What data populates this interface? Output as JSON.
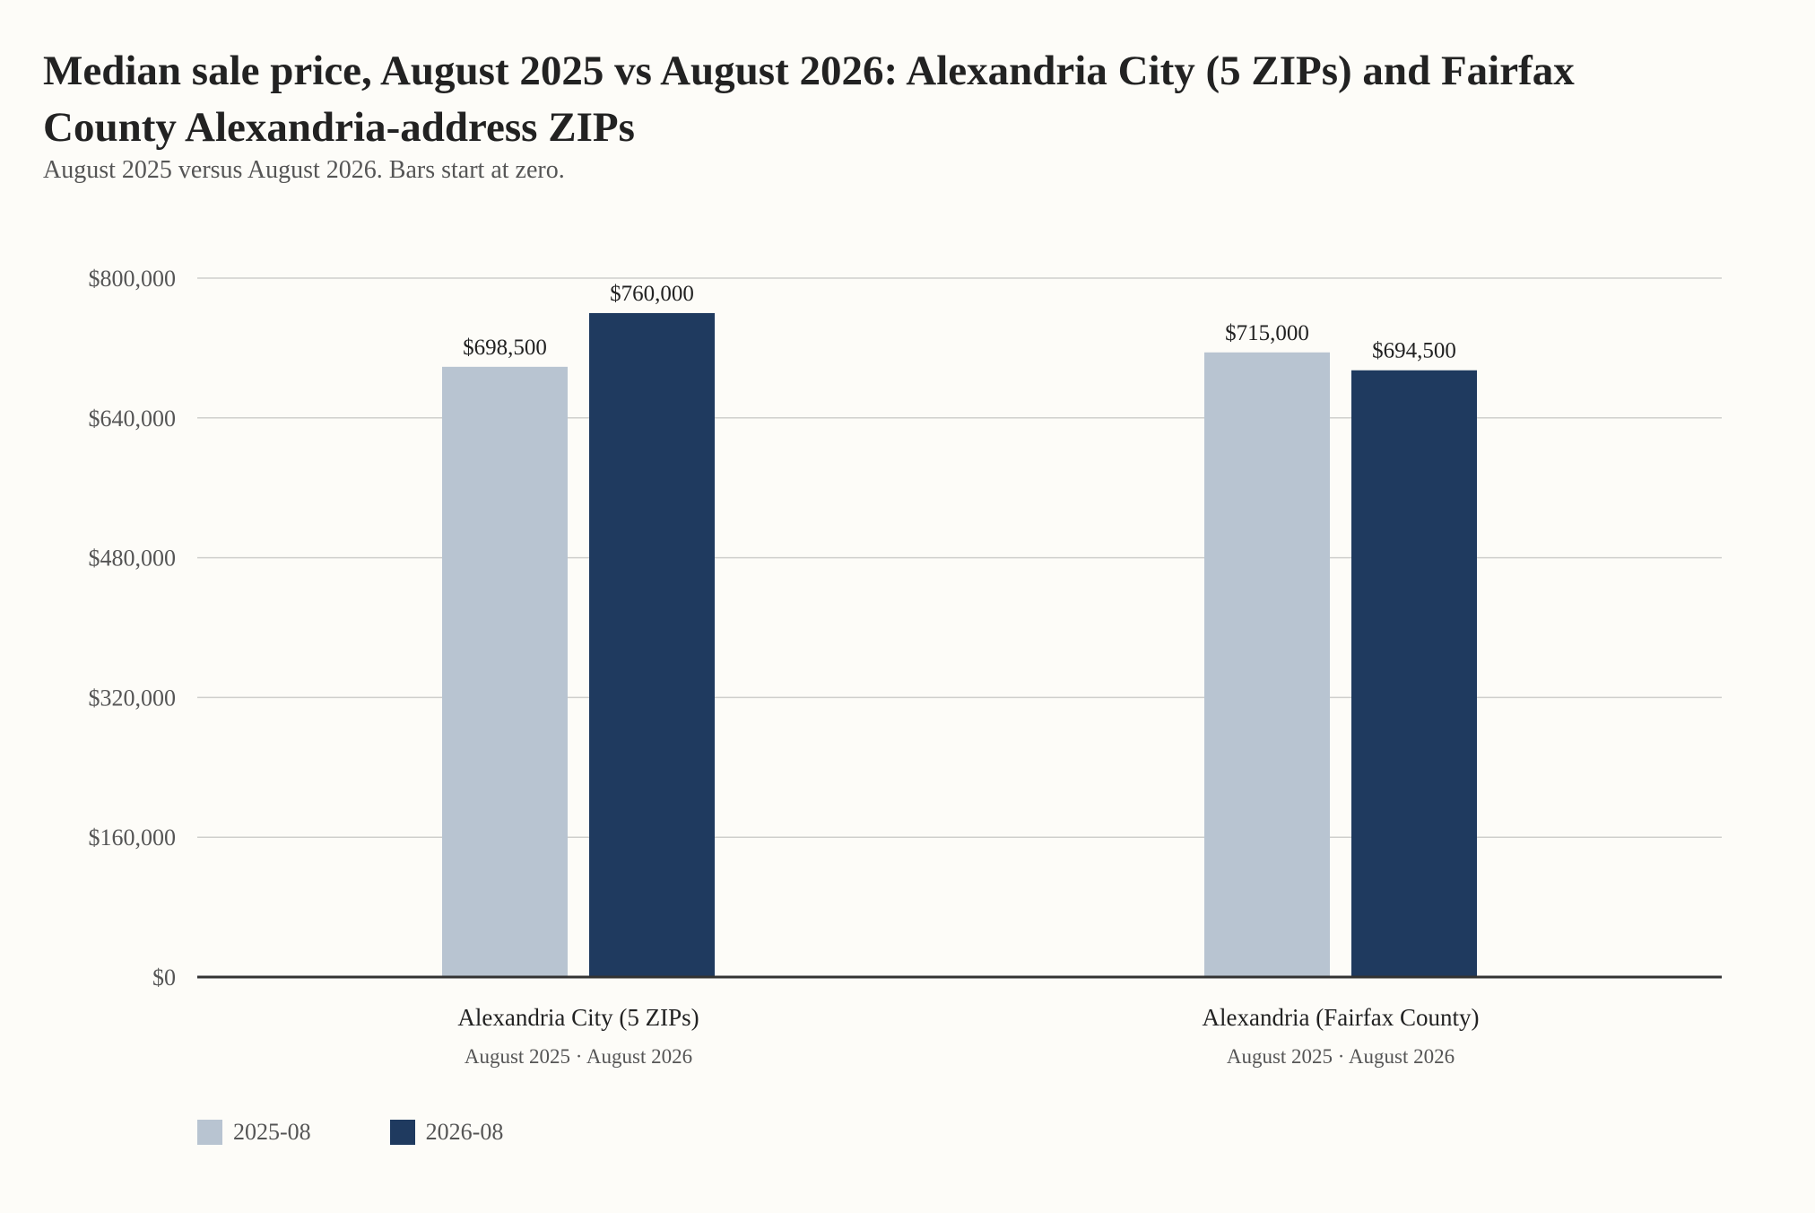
{
  "chart_data": {
    "type": "bar",
    "title": "Median sale price, August 2025 vs August 2026: Alexandria City (5 ZIPs) and Fairfax County Alexandria-address ZIPs",
    "subtitle": "August 2025 versus August 2026. Bars start at zero.",
    "xlabel": "",
    "ylabel": "",
    "ylim": [
      0,
      800000
    ],
    "yticks": [
      0,
      160000,
      320000,
      480000,
      640000,
      800000
    ],
    "ytick_labels": [
      "$0",
      "$160,000",
      "$320,000",
      "$480,000",
      "$640,000",
      "$800,000"
    ],
    "categories": [
      "Alexandria City (5 ZIPs)",
      "Alexandria (Fairfax County)"
    ],
    "category_sublabels": [
      "August 2025 · August 2026",
      "August 2025 · August 2026"
    ],
    "series": [
      {
        "name": "2025-08",
        "color": "#b8c4d1",
        "values": [
          698500,
          715000
        ],
        "labels": [
          "$698,500",
          "$715,000"
        ]
      },
      {
        "name": "2026-08",
        "color": "#1f3a5f",
        "values": [
          760000,
          694500
        ],
        "labels": [
          "$760,000",
          "$694,500"
        ]
      }
    ],
    "grid": true,
    "legend_position": "bottom-left"
  }
}
